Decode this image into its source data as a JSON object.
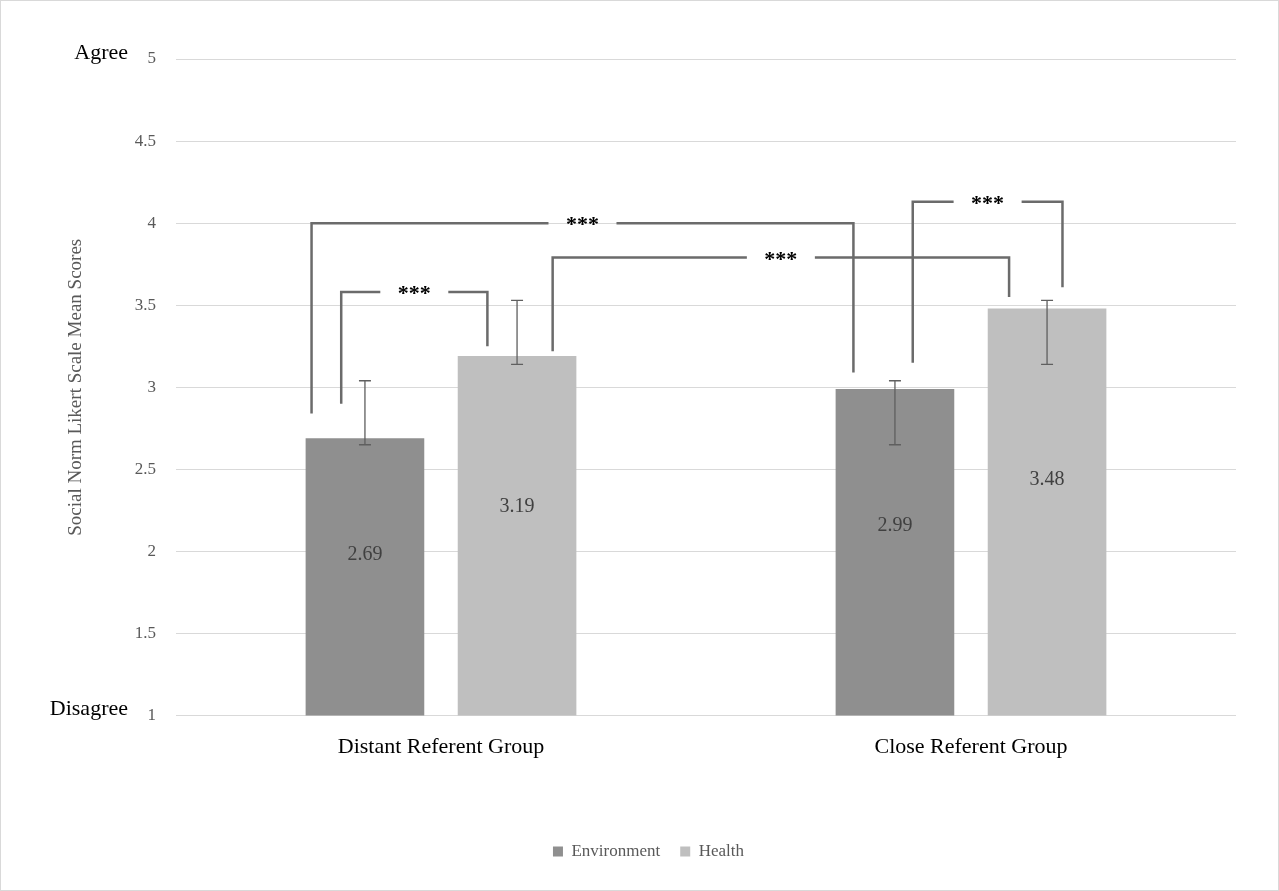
{
  "chart_data": {
    "type": "bar",
    "ylabel": "Social Norm Likert Scale Mean Scores",
    "categories": [
      "Distant Referent Group",
      "Close Referent Group"
    ],
    "series": [
      {
        "name": "Environment",
        "color": "#8f8f8f",
        "values": [
          2.69,
          2.99
        ],
        "errors": [
          [
            2.65,
            3.04
          ],
          [
            2.65,
            3.04
          ]
        ]
      },
      {
        "name": "Health",
        "color": "#bfbfbf",
        "values": [
          3.19,
          3.48
        ],
        "errors": [
          [
            3.14,
            3.53
          ],
          [
            3.14,
            3.53
          ]
        ]
      }
    ],
    "ylim": [
      1,
      5
    ],
    "yticks": [
      1,
      1.5,
      2,
      2.5,
      3,
      3.5,
      4,
      4.5,
      5
    ],
    "grid": "y",
    "legend": "bottom",
    "data_labels": true,
    "annotations": [
      "Agree",
      "Disagree",
      "***",
      "***",
      "***",
      "***"
    ]
  }
}
